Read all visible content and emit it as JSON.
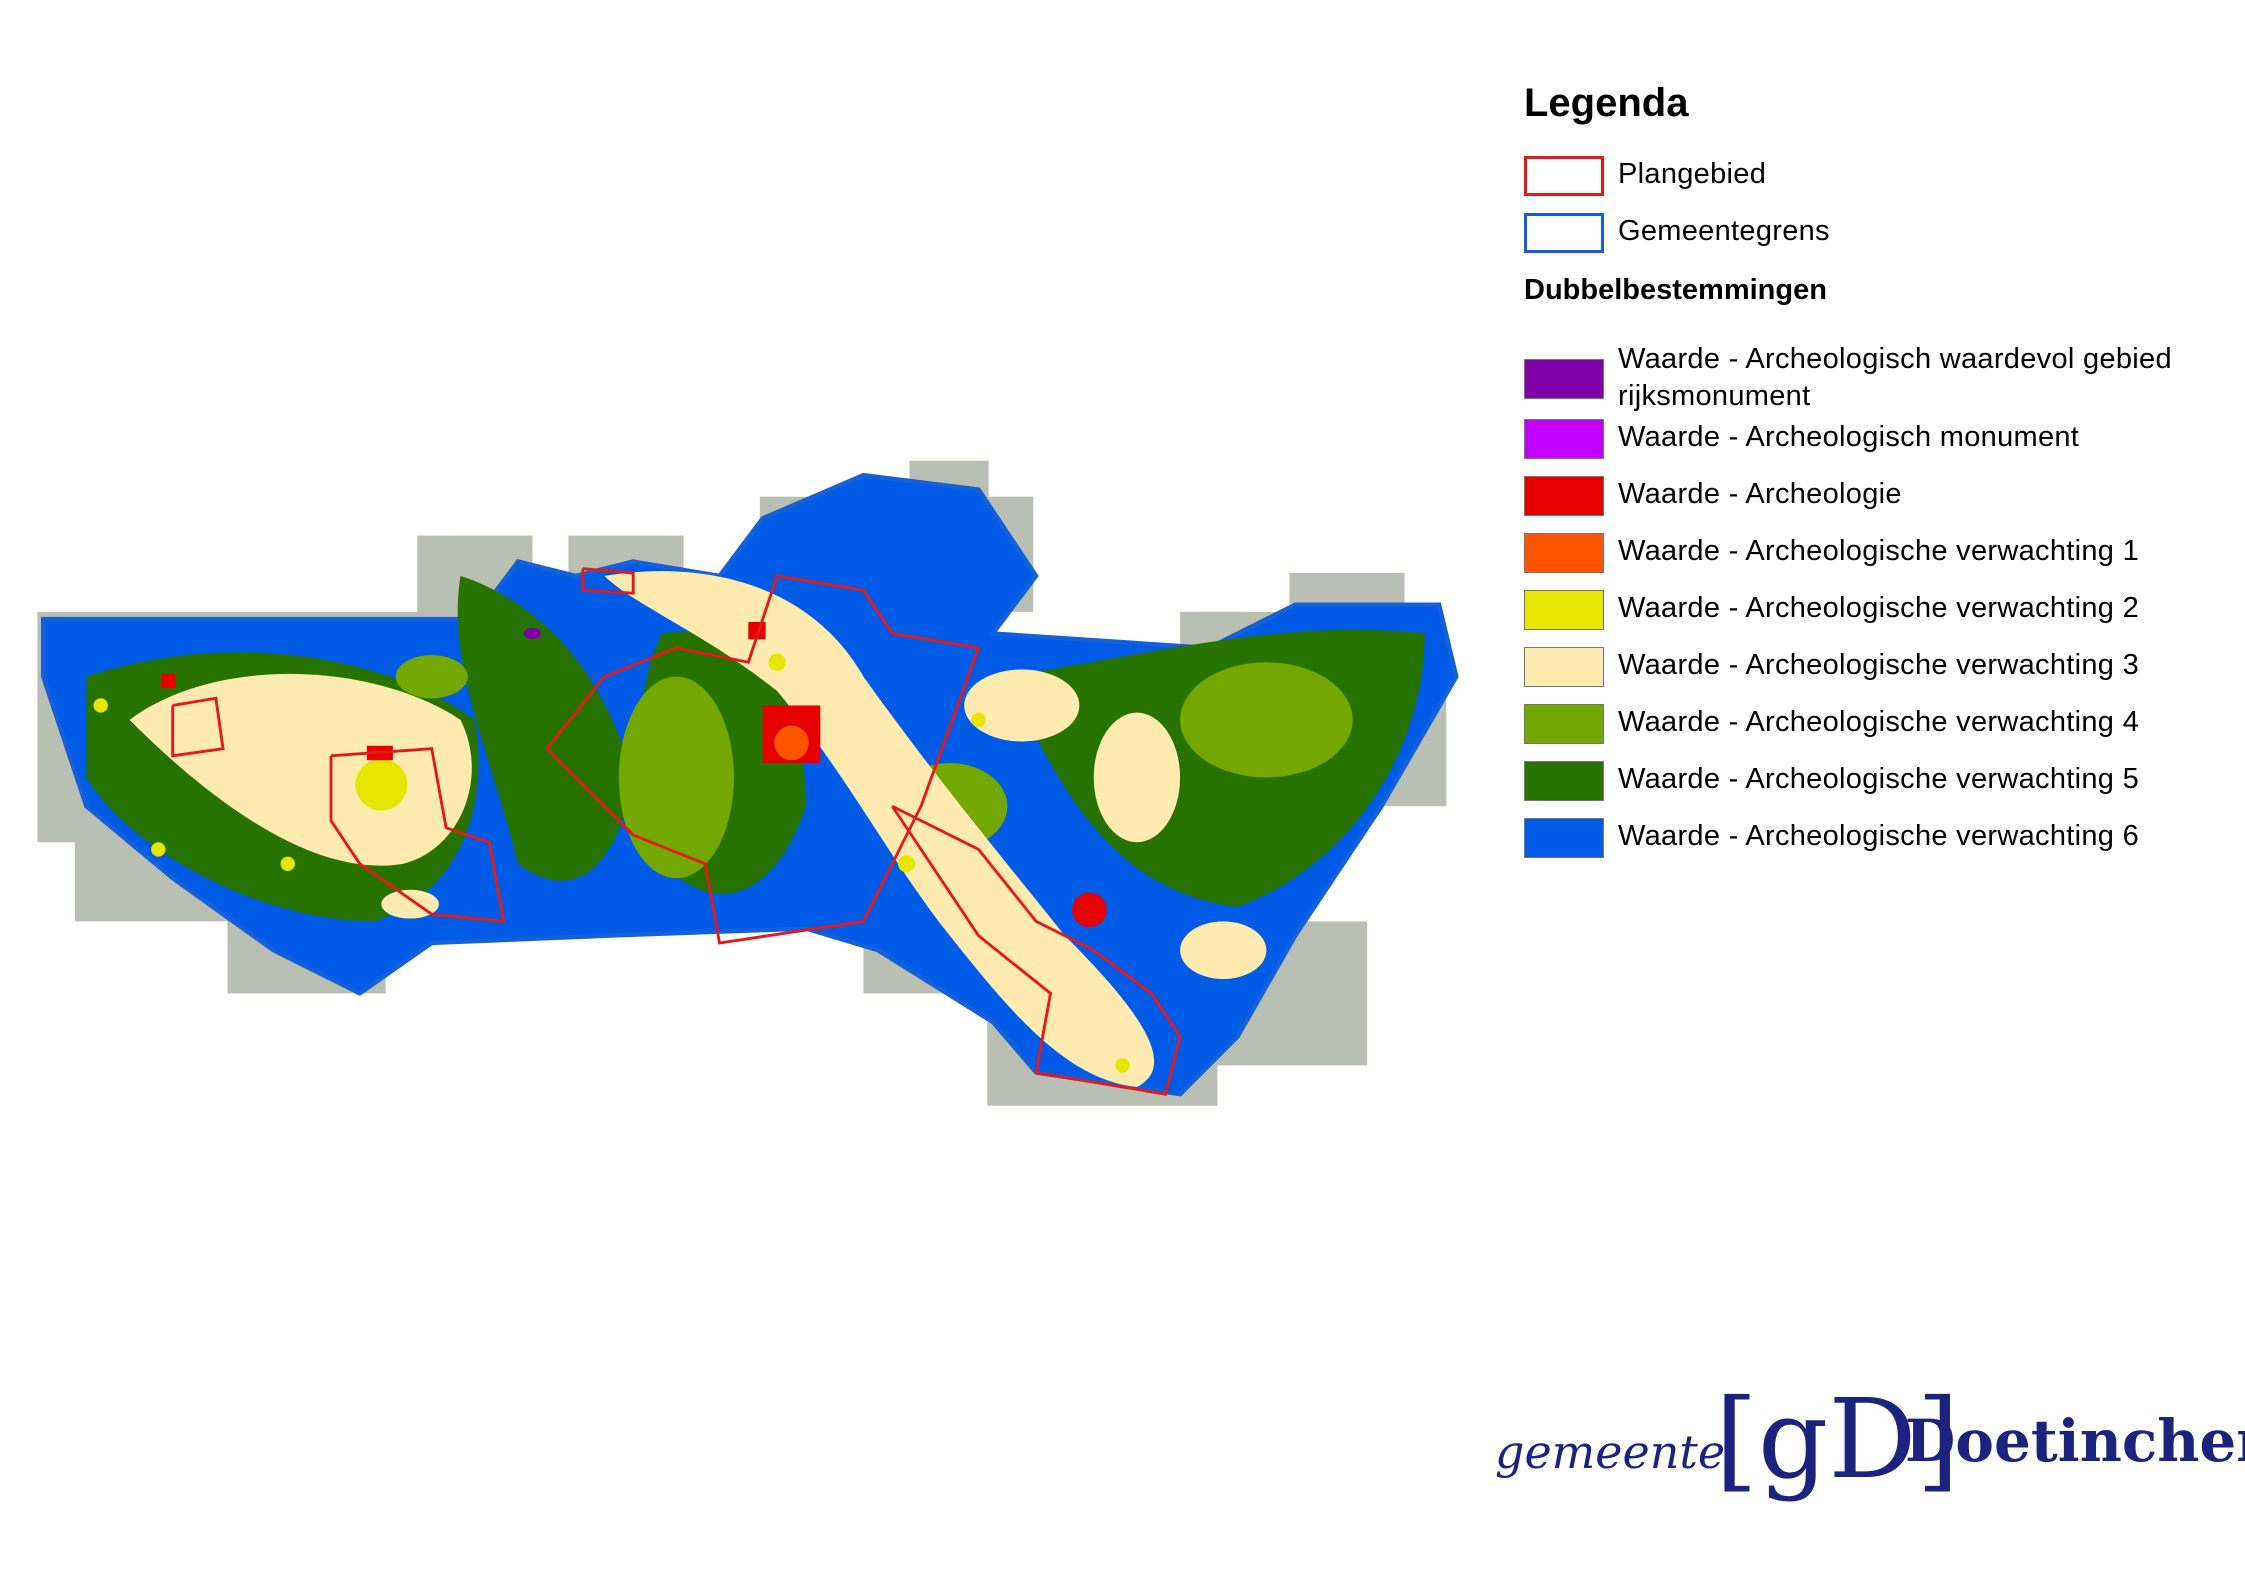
{
  "legend": {
    "title": "Legenda",
    "lines": [
      {
        "label": "Plangebied",
        "color": "#e31a1c"
      },
      {
        "label": "Gemeentegrens",
        "color": "#1560d8"
      }
    ],
    "section_title": "Dubbelbestemmingen",
    "items": [
      {
        "label": "Waarde - Archeologisch waardevol gebied rijksmonument",
        "color": "#7f00a6"
      },
      {
        "label": "Waarde - Archeologisch monument",
        "color": "#c300ff"
      },
      {
        "label": "Waarde - Archeologie",
        "color": "#e60000"
      },
      {
        "label": "Waarde - Archeologische verwachting 1",
        "color": "#ff5500"
      },
      {
        "label": "Waarde - Archeologische verwachting 2",
        "color": "#e6e600"
      },
      {
        "label": "Waarde - Archeologische verwachting 3",
        "color": "#ffebaf"
      },
      {
        "label": "Waarde - Archeologische verwachting 4",
        "color": "#73a800"
      },
      {
        "label": "Waarde - Archeologische verwachting 5",
        "color": "#267300"
      },
      {
        "label": "Waarde - Archeologische verwachting 6",
        "color": "#005ce6"
      }
    ]
  },
  "logo": {
    "prefix": "gemeente",
    "mark": "[gD]",
    "name": "Doetinchem",
    "color": "#1b237f"
  }
}
